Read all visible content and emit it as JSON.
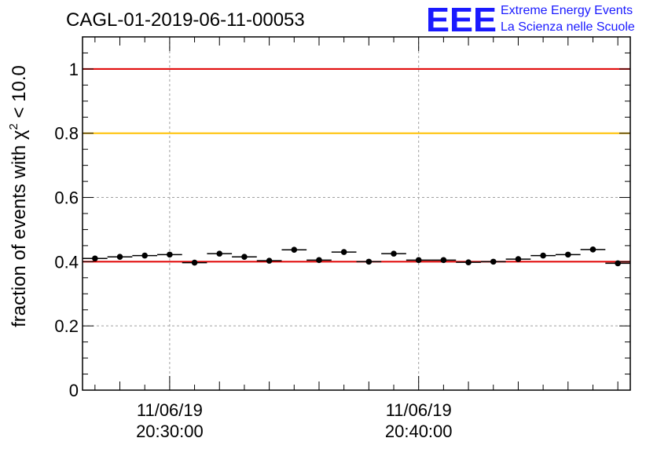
{
  "header": {
    "title": "CAGL-01-2019-06-11-00053",
    "logo_letters": "EEE",
    "logo_line1": "Extreme Energy Events",
    "logo_line2": "La Scienza nelle Scuole"
  },
  "colors": {
    "upper_ref": "#e00000",
    "warn_ref": "#ffc000",
    "lower_ref": "#e00000",
    "marker": "#000000",
    "logo": "#1a1aff"
  },
  "chart_data": {
    "type": "scatter",
    "title": "CAGL-01-2019-06-11-00053",
    "xlabel": "",
    "ylabel_prefix": "fraction of events with ",
    "ylabel_chi": "χ",
    "ylabel_sup": "2",
    "ylabel_suffix": " < 10.0",
    "ylim": [
      0,
      1.1
    ],
    "yticks": [
      0,
      0.2,
      0.4,
      0.6,
      0.8,
      1
    ],
    "ytick_labels": [
      "0",
      "0.2",
      "0.4",
      "0.6",
      "0.8",
      "1"
    ],
    "xlim_minutes": [
      26.5,
      48.5
    ],
    "xticks": [
      {
        "minutes": 30,
        "date": "11/06/19",
        "time": "20:30:00"
      },
      {
        "minutes": 40,
        "date": "11/06/19",
        "time": "20:40:00"
      }
    ],
    "grid": true,
    "reference_lines": [
      {
        "y": 1.0,
        "color": "#e00000"
      },
      {
        "y": 0.8,
        "color": "#ffc000"
      },
      {
        "y": 0.4,
        "color": "#e00000"
      }
    ],
    "bin_width_minutes": 1,
    "points": [
      {
        "x": 27,
        "y": 0.41
      },
      {
        "x": 28,
        "y": 0.415
      },
      {
        "x": 29,
        "y": 0.419
      },
      {
        "x": 30,
        "y": 0.422
      },
      {
        "x": 31,
        "y": 0.397
      },
      {
        "x": 32,
        "y": 0.425
      },
      {
        "x": 33,
        "y": 0.415
      },
      {
        "x": 34,
        "y": 0.403
      },
      {
        "x": 35,
        "y": 0.437
      },
      {
        "x": 36,
        "y": 0.405
      },
      {
        "x": 37,
        "y": 0.43
      },
      {
        "x": 38,
        "y": 0.4
      },
      {
        "x": 39,
        "y": 0.425
      },
      {
        "x": 40,
        "y": 0.405
      },
      {
        "x": 41,
        "y": 0.405
      },
      {
        "x": 42,
        "y": 0.398
      },
      {
        "x": 43,
        "y": 0.4
      },
      {
        "x": 44,
        "y": 0.408
      },
      {
        "x": 45,
        "y": 0.419
      },
      {
        "x": 46,
        "y": 0.422
      },
      {
        "x": 47,
        "y": 0.438
      },
      {
        "x": 48,
        "y": 0.395
      }
    ]
  }
}
